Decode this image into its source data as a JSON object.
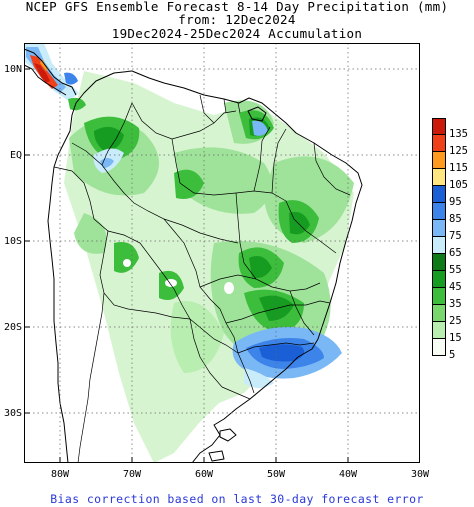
{
  "title": {
    "line1": "NCEP GFS Ensemble Forecast 8-14 Day Precipitation (mm)",
    "line2": "from: 12Dec2024",
    "line3": "19Dec2024-25Dec2024 Accumulation"
  },
  "axes": {
    "x_ticks": [
      "80W",
      "70W",
      "60W",
      "50W",
      "40W",
      "30W"
    ],
    "y_ticks": [
      "10N",
      "EQ",
      "10S",
      "20S",
      "30S"
    ],
    "lon_range": [
      -85,
      -30
    ],
    "lat_range": [
      -36,
      13
    ]
  },
  "legend": {
    "items": [
      {
        "label": "135",
        "color": "#cc1a0a"
      },
      {
        "label": "125",
        "color": "#f0401a"
      },
      {
        "label": "115",
        "color": "#ff9a20"
      },
      {
        "label": "105",
        "color": "#ffe680"
      },
      {
        "label": "95",
        "color": "#1a5fd6"
      },
      {
        "label": "85",
        "color": "#3c84ea"
      },
      {
        "label": "75",
        "color": "#7ab8f5"
      },
      {
        "label": "65",
        "color": "#c9ecfb"
      },
      {
        "label": "55",
        "color": "#0e7a18"
      },
      {
        "label": "45",
        "color": "#169c20"
      },
      {
        "label": "35",
        "color": "#3cbe3c"
      },
      {
        "label": "25",
        "color": "#78d86e"
      },
      {
        "label": "15",
        "color": "#b8eeb0"
      },
      {
        "label": "5",
        "color": "#f7fcf4"
      }
    ]
  },
  "footer": "Bias correction based on last 30-day forecast error"
}
